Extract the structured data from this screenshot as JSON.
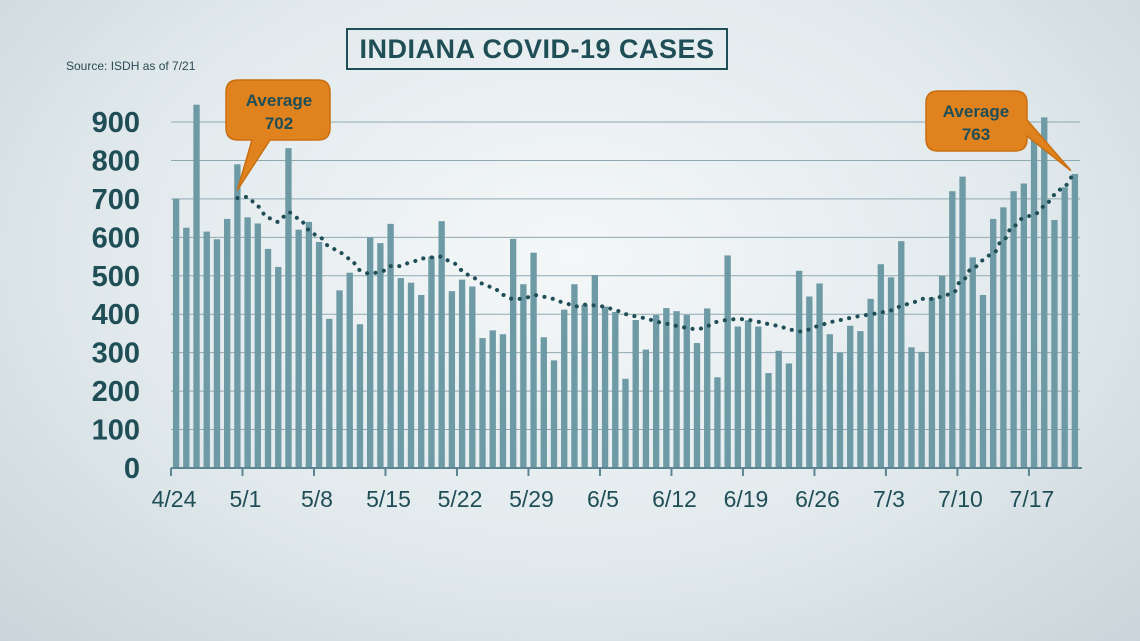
{
  "title": "INDIANA COVID-19 CASES",
  "source": "Source: ISDH as of 7/21",
  "callouts": [
    {
      "label": "Average",
      "value": "702"
    },
    {
      "label": "Average",
      "value": "763"
    }
  ],
  "colors": {
    "bar": "#6e9aa6",
    "trend": "#1f4e57",
    "callout": "#e0821d",
    "callout_border": "#c96e10",
    "text": "#1f4e57"
  },
  "chart_data": {
    "type": "bar",
    "title": "INDIANA COVID-19 CASES",
    "xlabel": "",
    "ylabel": "",
    "ylim": [
      0,
      900
    ],
    "yticks": [
      0,
      100,
      200,
      300,
      400,
      500,
      600,
      700,
      800,
      900
    ],
    "xticklabels": [
      "4/24",
      "5/1",
      "5/8",
      "5/15",
      "5/22",
      "5/29",
      "6/5",
      "6/12",
      "6/19",
      "6/26",
      "7/3",
      "7/10",
      "7/17"
    ],
    "categories": [
      "4/24",
      "4/25",
      "4/26",
      "4/27",
      "4/28",
      "4/29",
      "4/30",
      "5/1",
      "5/2",
      "5/3",
      "5/4",
      "5/5",
      "5/6",
      "5/7",
      "5/8",
      "5/9",
      "5/10",
      "5/11",
      "5/12",
      "5/13",
      "5/14",
      "5/15",
      "5/16",
      "5/17",
      "5/18",
      "5/19",
      "5/20",
      "5/21",
      "5/22",
      "5/23",
      "5/24",
      "5/25",
      "5/26",
      "5/27",
      "5/28",
      "5/29",
      "5/30",
      "5/31",
      "6/1",
      "6/2",
      "6/3",
      "6/4",
      "6/5",
      "6/6",
      "6/7",
      "6/8",
      "6/9",
      "6/10",
      "6/11",
      "6/12",
      "6/13",
      "6/14",
      "6/15",
      "6/16",
      "6/17",
      "6/18",
      "6/19",
      "6/20",
      "6/21",
      "6/22",
      "6/23",
      "6/24",
      "6/25",
      "6/26",
      "6/27",
      "6/28",
      "6/29",
      "6/30",
      "7/1",
      "7/2",
      "7/3",
      "7/4",
      "7/5",
      "7/6",
      "7/7",
      "7/8",
      "7/9",
      "7/10",
      "7/11",
      "7/12",
      "7/13",
      "7/14",
      "7/15",
      "7/16",
      "7/17",
      "7/18",
      "7/19",
      "7/20",
      "7/21"
    ],
    "series": [
      {
        "type": "bar",
        "values": [
          700,
          625,
          945,
          615,
          595,
          648,
          790,
          652,
          636,
          570,
          523,
          832,
          620,
          640,
          588,
          388,
          462,
          508,
          374,
          600,
          585,
          635,
          494,
          482,
          450,
          550,
          642,
          460,
          490,
          472,
          338,
          358,
          348,
          596,
          478,
          560,
          340,
          280,
          412,
          478,
          425,
          502,
          420,
          406,
          232,
          385,
          308,
          398,
          416,
          408,
          398,
          325,
          415,
          236,
          553,
          368,
          384,
          368,
          247,
          305,
          272,
          513,
          446,
          480,
          348,
          300,
          370,
          356,
          440,
          530,
          496,
          590,
          314,
          302,
          443,
          500,
          720,
          758,
          548,
          450,
          648,
          678,
          720,
          740,
          855,
          912,
          645,
          730,
          765
        ]
      },
      {
        "type": "line",
        "style": "dotted",
        "values": [
          null,
          null,
          null,
          null,
          null,
          null,
          702,
          705,
          680,
          650,
          640,
          665,
          650,
          620,
          600,
          578,
          560,
          545,
          515,
          505,
          510,
          525,
          525,
          535,
          545,
          548,
          550,
          535,
          515,
          495,
          480,
          470,
          450,
          440,
          440,
          450,
          445,
          440,
          430,
          420,
          425,
          423,
          420,
          410,
          400,
          395,
          390,
          380,
          375,
          370,
          365,
          360,
          370,
          380,
          385,
          388,
          385,
          380,
          375,
          370,
          360,
          355,
          360,
          370,
          380,
          385,
          390,
          395,
          400,
          405,
          410,
          420,
          430,
          440,
          440,
          445,
          455,
          490,
          520,
          540,
          560,
          595,
          630,
          650,
          660,
          680,
          710,
          735,
          763
        ]
      }
    ]
  }
}
